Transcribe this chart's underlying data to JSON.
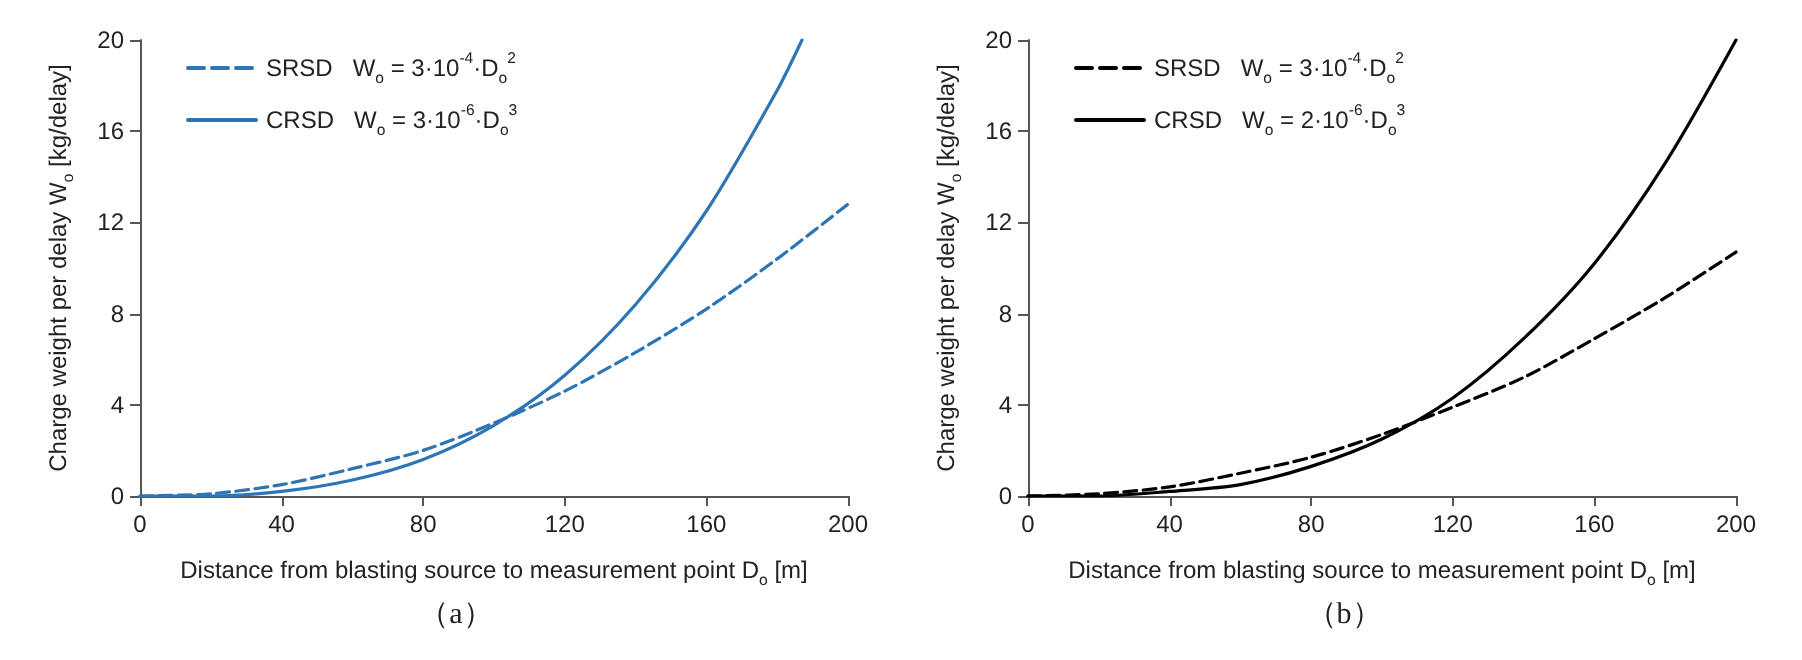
{
  "chart_data": [
    {
      "type": "line",
      "title": "（a）",
      "xlabel": "Distance from blasting source to measurement point D$_{o}$ [m]",
      "ylabel": "Charge weight per delay W$_{o}$ [kg/delay]",
      "xlim": [
        0,
        200
      ],
      "ylim": [
        0,
        20
      ],
      "xticks": [
        0,
        40,
        80,
        120,
        160,
        200
      ],
      "yticks": [
        0,
        4,
        8,
        12,
        16,
        20
      ],
      "grid": false,
      "legend": "top left",
      "marker": "none",
      "series": [
        {
          "name": "SRSD   W$_{o}$ = 3·10$^{-4}$·D$_{o}$$^{2}$",
          "color": "#2e75b6",
          "line_style": "dashed",
          "x": [
            0,
            20,
            40,
            60,
            80,
            100,
            120,
            140,
            160,
            180,
            200
          ],
          "values": [
            0,
            0.1,
            0.5,
            1.2,
            2.0,
            3.2,
            4.6,
            6.3,
            8.2,
            10.4,
            12.8
          ]
        },
        {
          "name": "CRSD   W$_{o}$ = 3·10$^{-6}$·D$_{o}$$^{3}$",
          "color": "#2e75b6",
          "line_style": "solid",
          "x": [
            0,
            20,
            40,
            60,
            80,
            100,
            120,
            140,
            160,
            180,
            187
          ],
          "values": [
            0,
            0,
            0.2,
            0.7,
            1.6,
            3.1,
            5.3,
            8.4,
            12.5,
            17.8,
            20
          ]
        }
      ]
    },
    {
      "type": "line",
      "title": "（b）",
      "xlabel": "Distance from blasting source to measurement point D$_{o}$ [m]",
      "ylabel": "Charge weight per delay W$_{o}$ [kg/delay]",
      "xlim": [
        0,
        200
      ],
      "ylim": [
        0,
        20
      ],
      "xticks": [
        0,
        40,
        80,
        120,
        160,
        200
      ],
      "yticks": [
        0,
        4,
        8,
        12,
        16,
        20
      ],
      "grid": false,
      "legend": "top left",
      "marker": "none",
      "series": [
        {
          "name": "SRSD   W$_{o}$ = 3·10$^{-4}$·D$_{o}$$^{2}$",
          "color": "#000000",
          "line_style": "dashed",
          "x": [
            0,
            20,
            40,
            60,
            80,
            100,
            120,
            140,
            160,
            180,
            200
          ],
          "values": [
            0,
            0.1,
            0.4,
            1.0,
            1.7,
            2.7,
            3.9,
            5.2,
            6.9,
            8.7,
            10.7
          ]
        },
        {
          "name": "CRSD   W$_{o}$ = 2·10$^{-6}$·D$_{o}$$^{3}$",
          "color": "#000000",
          "line_style": "solid",
          "x": [
            0,
            20,
            40,
            60,
            80,
            100,
            120,
            140,
            160,
            180,
            200
          ],
          "values": [
            0,
            0,
            0.2,
            0.5,
            1.3,
            2.5,
            4.3,
            6.9,
            10.2,
            14.6,
            20
          ]
        }
      ]
    }
  ]
}
